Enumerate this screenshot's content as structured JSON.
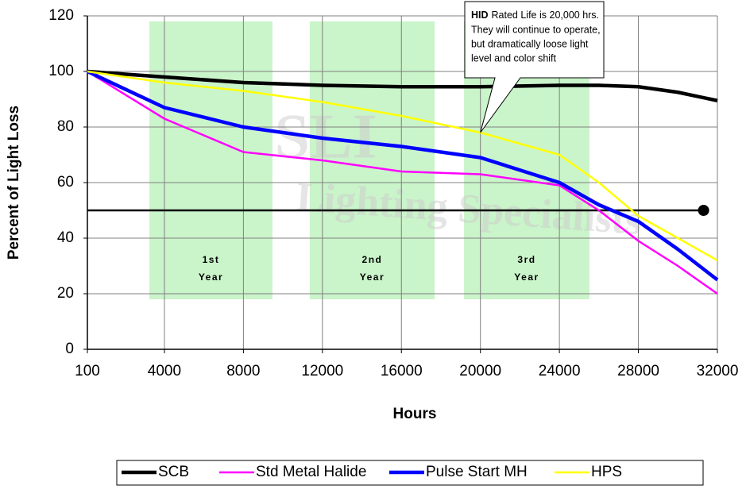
{
  "chart_data": {
    "type": "line",
    "xlabel": "Hours",
    "ylabel": "Percent of Light Loss",
    "xlim": [
      100,
      32000
    ],
    "xticks": [
      100,
      4000,
      8000,
      12000,
      16000,
      20000,
      24000,
      28000,
      32000
    ],
    "ylim": [
      0,
      120
    ],
    "yticks": [
      0,
      20,
      40,
      60,
      80,
      100,
      120
    ],
    "grid": true,
    "legend": "bottom",
    "x": [
      100,
      4000,
      8000,
      12000,
      16000,
      20000,
      24000,
      26000,
      28000,
      30000,
      32000
    ],
    "series": [
      {
        "name": "SCB",
        "color": "#000000",
        "values": [
          100,
          98,
          96,
          95,
          94.5,
          94.5,
          95,
          95,
          94.5,
          92.5,
          89.5
        ]
      },
      {
        "name": "Std Metal Halide",
        "color": "#ff00ff",
        "values": [
          100,
          83,
          71,
          68,
          64,
          63,
          59,
          50,
          39,
          30,
          20
        ]
      },
      {
        "name": "Pulse Start MH",
        "color": "#0000ff",
        "values": [
          100,
          87,
          80,
          76,
          73,
          69,
          60,
          52,
          46,
          36,
          25
        ]
      },
      {
        "name": "HPS",
        "color": "#ffff00",
        "values": [
          100,
          96,
          93,
          89,
          84,
          78,
          70,
          60,
          48,
          40,
          32
        ]
      }
    ],
    "reference_line": {
      "y": 50,
      "x": [
        100,
        31300
      ],
      "color": "#000000"
    },
    "bands": [
      {
        "x": [
          3240,
          9470
        ],
        "y": [
          18,
          118
        ],
        "label": [
          "1st",
          "Year"
        ]
      },
      {
        "x": [
          11360,
          17680
        ],
        "y": [
          18,
          118
        ],
        "label": [
          "2nd",
          "Year"
        ]
      },
      {
        "x": [
          19170,
          25520
        ],
        "y": [
          18,
          118
        ],
        "label": [
          "3rd",
          "Year"
        ]
      }
    ],
    "band_color": "#b8f0b8",
    "watermark": [
      "SLI",
      "Lighting Specialists"
    ],
    "callout": {
      "bold": "HID",
      "lines": [
        "Rated Life is 20,000 hrs.",
        "They will continue to operate,",
        "but dramatically loose light",
        "level and color shift"
      ],
      "x": 20000,
      "y": 78
    }
  }
}
